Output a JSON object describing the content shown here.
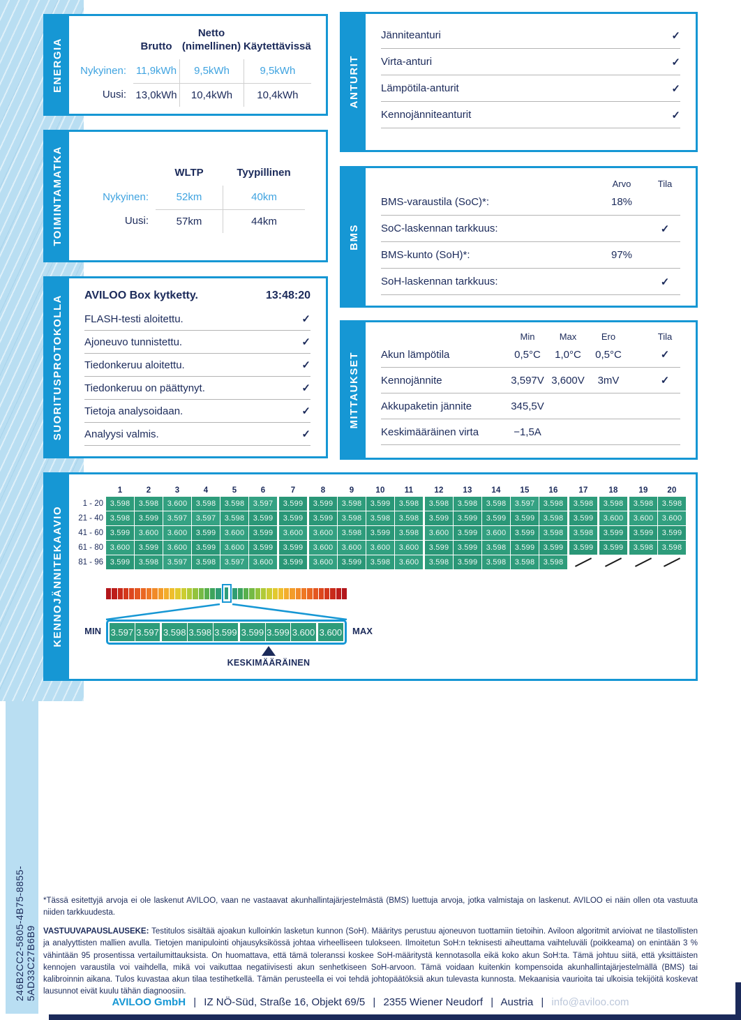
{
  "page": {
    "vertical_id": "246B2CC2-5805-4B75-8855-5AD33C27B6B9",
    "check_glyph": "✓",
    "colors": {
      "accent": "#1697d4",
      "navy": "#1b2a5a",
      "value_blue": "#3fa3e0",
      "band_blue": "#b9def2",
      "cell_green": "#2e9c7b",
      "cell_shades": {
        "3.597": "#35a283",
        "3.598": "#2e9c7b",
        "3.599": "#2a9777",
        "3.600": "#32a080"
      }
    }
  },
  "energia": {
    "tab": "ENERGIA",
    "headers": {
      "brutto": "Brutto",
      "netto_top": "Netto",
      "netto_bottom": "(nimellinen)",
      "kaytettavissa": "Käytettävissä"
    },
    "rows": [
      {
        "label": "Nykyinen:",
        "values": [
          "11,9kWh",
          "9,5kWh",
          "9,5kWh"
        ]
      },
      {
        "label": "Uusi:",
        "values": [
          "13,0kWh",
          "10,4kWh",
          "10,4kWh"
        ]
      }
    ]
  },
  "toimintamatka": {
    "tab": "TOIMINTAMATKA",
    "headers": {
      "wltp": "WLTP",
      "tyypillinen": "Tyypillinen"
    },
    "rows": [
      {
        "label": "Nykyinen:",
        "values": [
          "52km",
          "40km"
        ]
      },
      {
        "label": "Uusi:",
        "values": [
          "57km",
          "44km"
        ]
      }
    ]
  },
  "suoritusprotokolla": {
    "tab": "SUORITUSPROTOKOLLA",
    "title": "AVILOO Box kytketty.",
    "time": "13:48:20",
    "steps": [
      "FLASH-testi aloitettu.",
      "Ajoneuvo tunnistettu.",
      "Tiedonkeruu aloitettu.",
      "Tiedonkeruu on päättynyt.",
      "Tietoja analysoidaan.",
      "Analyysi valmis."
    ]
  },
  "anturit": {
    "tab": "ANTURIT",
    "items": [
      "Jänniteanturi",
      "Virta-anturi",
      "Lämpötila-anturit",
      "Kennojänniteanturit"
    ]
  },
  "bms": {
    "tab": "BMS",
    "col_headers": {
      "arvo": "Arvo",
      "tila": "Tila"
    },
    "rows": [
      {
        "label": "BMS-varaustila (SoC)*:",
        "arvo": "18%",
        "tila_check": false
      },
      {
        "label": "SoC-laskennan tarkkuus:",
        "arvo": "",
        "tila_check": true
      },
      {
        "label": "BMS-kunto (SoH)*:",
        "arvo": "97%",
        "tila_check": false
      },
      {
        "label": "SoH-laskennan tarkkuus:",
        "arvo": "",
        "tila_check": true
      }
    ]
  },
  "mittaukset": {
    "tab": "MITTAUKSET",
    "col_headers": {
      "min": "Min",
      "max": "Max",
      "ero": "Ero",
      "tila": "Tila"
    },
    "rows": [
      {
        "label": "Akun lämpötila",
        "min": "0,5°C",
        "max": "1,0°C",
        "ero": "0,5°C",
        "tila_check": true
      },
      {
        "label": "Kennojännite",
        "min": "3,597V",
        "max": "3,600V",
        "ero": "3mV",
        "tila_check": true
      },
      {
        "label": "Akkupaketin jännite",
        "min": "345,5V",
        "max": "",
        "ero": "",
        "tila_check": false
      },
      {
        "label": "Keskimääräinen virta",
        "min": "−1,5A",
        "max": "",
        "ero": "",
        "tila_check": false
      }
    ]
  },
  "kennojannitekaavio": {
    "tab": "KENNOJÄNNITEKAAVIO",
    "min_label": "MIN",
    "max_label": "MAX",
    "average_label": "KESKIMÄÄRÄINEN",
    "chart_data": {
      "type": "heatmap",
      "columns": [
        "1",
        "2",
        "3",
        "4",
        "5",
        "6",
        "7",
        "8",
        "9",
        "10",
        "11",
        "12",
        "13",
        "14",
        "15",
        "16",
        "17",
        "18",
        "19",
        "20"
      ],
      "rows": [
        {
          "label": "1 - 20",
          "values": [
            "3.598",
            "3.598",
            "3.600",
            "3.598",
            "3.598",
            "3.597",
            "3.599",
            "3.599",
            "3.598",
            "3.599",
            "3.598",
            "3.598",
            "3.598",
            "3.598",
            "3.597",
            "3.598",
            "3.598",
            "3.598",
            "3.598",
            "3.598"
          ]
        },
        {
          "label": "21 - 40",
          "values": [
            "3.598",
            "3.599",
            "3.597",
            "3.597",
            "3.598",
            "3.599",
            "3.599",
            "3.599",
            "3.598",
            "3.598",
            "3.598",
            "3.599",
            "3.599",
            "3.599",
            "3.599",
            "3.598",
            "3.599",
            "3.600",
            "3.600",
            "3.600"
          ]
        },
        {
          "label": "41 - 60",
          "values": [
            "3.599",
            "3.600",
            "3.600",
            "3.599",
            "3.600",
            "3.599",
            "3.600",
            "3.600",
            "3.598",
            "3.599",
            "3.598",
            "3.600",
            "3.599",
            "3.600",
            "3.599",
            "3.598",
            "3.598",
            "3.599",
            "3.599",
            "3.599"
          ]
        },
        {
          "label": "61 - 80",
          "values": [
            "3.600",
            "3.599",
            "3.600",
            "3.599",
            "3.600",
            "3.599",
            "3.599",
            "3.600",
            "3.600",
            "3.600",
            "3.600",
            "3.599",
            "3.599",
            "3.598",
            "3.599",
            "3.599",
            "3.599",
            "3.599",
            "3.598",
            "3.598"
          ]
        },
        {
          "label": "81 - 96",
          "values": [
            "3.599",
            "3.598",
            "3.597",
            "3.598",
            "3.597",
            "3.600",
            "3.599",
            "3.600",
            "3.599",
            "3.598",
            "3.600",
            "3.598",
            "3.599",
            "3.598",
            "3.598",
            "3.598"
          ]
        }
      ],
      "total_columns": 20,
      "group_start_indices": [
        6,
        7,
        11,
        16,
        17,
        18
      ],
      "magnified_groups": [
        [
          "3.597",
          "3.597"
        ],
        [
          "3.598",
          "3.598",
          "3.599"
        ],
        [
          "3.599",
          "3.599",
          "3.600"
        ],
        [
          "3.600"
        ]
      ],
      "gradient_left": [
        "#b3161b",
        "#bd1d1a",
        "#c92a1a",
        "#d4381b",
        "#dd471d",
        "#e45720",
        "#ea6722",
        "#ef7825",
        "#f18a28",
        "#f39c2a",
        "#f3ad2c",
        "#efbe2d",
        "#e2c92e",
        "#cccd31",
        "#b1ca37",
        "#93c33d",
        "#75ba45",
        "#58b04d",
        "#3da45d",
        "#2f9d74"
      ],
      "gradient_right": [
        "#2f9d74",
        "#3da45d",
        "#58b04d",
        "#75ba45",
        "#93c33d",
        "#b1ca37",
        "#cccd31",
        "#e2c92e",
        "#efbe2d",
        "#f3ad2c",
        "#f39c2a",
        "#f18a28",
        "#ef7825",
        "#ea6722",
        "#e45720",
        "#dd471d",
        "#d4381b",
        "#c92a1a",
        "#bd1d1a",
        "#b3161b"
      ]
    }
  },
  "disclaimer": {
    "p1": "*Tässä esitettyjä arvoja ei ole laskenut AVILOO, vaan ne vastaavat akunhallintajärjestelmästä (BMS) luettuja arvoja, jotka valmistaja on laskenut. AVILOO ei näin ollen ota vastuuta niiden tarkkuudesta.",
    "p2_lead": "VASTUUVAPAUSLAUSEKE:",
    "p2": " Testitulos sisältää ajoakun kulloinkin lasketun kunnon (SoH). Määritys perustuu ajoneuvon tuottamiin tietoihin. Aviloon algoritmit arvioivat ne tilastollisten ja analyyttisten mallien avulla. Tietojen manipulointi ohjausyksikössä johtaa virheelliseen tulokseen. Ilmoitetun SoH:n teknisesti aiheuttama vaihteluväli (poikkeama) on enintään 3 % vähintään 95 prosentissa vertailumittauksista. On huomattava, että tämä toleranssi koskee SoH-määritystä kennotasolla eikä koko akun SoH:ta. Tämä johtuu siitä, että yksittäisten kennojen varaustila voi vaihdella, mikä voi vaikuttaa negatiivisesti akun senhetkiseen SoH-arvoon. Tämä voidaan kuitenkin kompensoida akunhallintajärjestelmällä (BMS) tai kalibroinnin aikana. Tulos kuvastaa akun tilaa testihetkellä. Tämän perusteella ei voi tehdä johtopäätöksiä akun tulevasta kunnosta. Mekaanisia vaurioita tai ulkoisia tekijöitä koskevat lausunnot eivät kuulu tähän diagnoosiin."
  },
  "footer": {
    "company": "AVILOO GmbH",
    "separator": "|",
    "address": "IZ NÖ-Süd, Straße 16, Objekt 69/5",
    "city": "2355 Wiener Neudorf",
    "country": "Austria",
    "email": "info@aviloo.com"
  }
}
